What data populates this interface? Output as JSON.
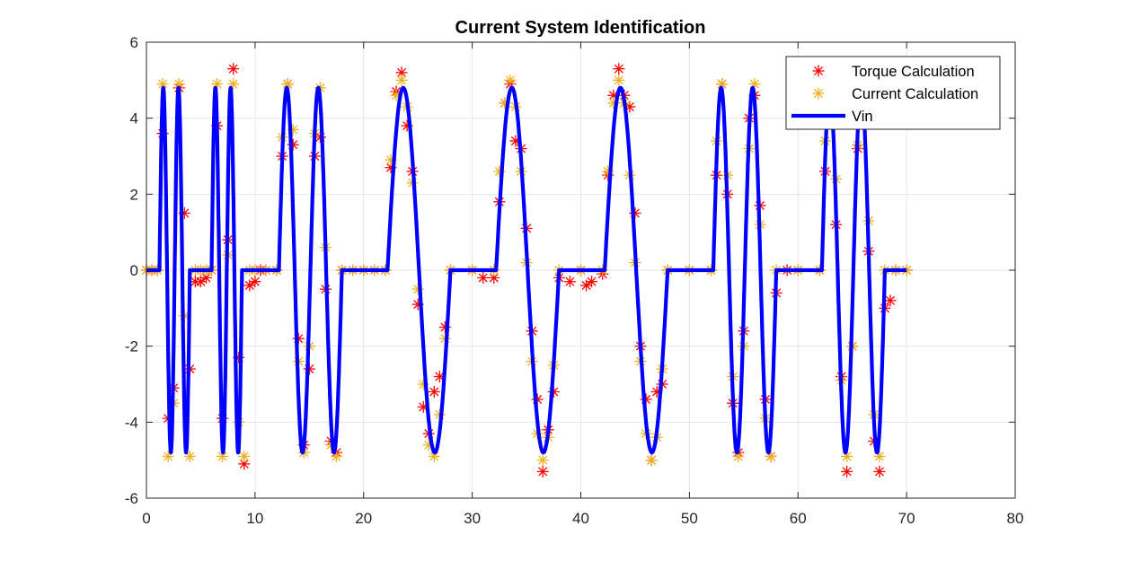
{
  "chart_data": {
    "type": "line",
    "title": "Current System Identification",
    "xlabel": "",
    "ylabel": "",
    "xlim": [
      0,
      80
    ],
    "ylim": [
      -6,
      6
    ],
    "xticks": [
      0,
      10,
      20,
      30,
      40,
      50,
      60,
      70,
      80
    ],
    "yticks": [
      -6,
      -4,
      -2,
      0,
      2,
      4,
      6
    ],
    "grid": true,
    "legend_position": "top-right",
    "series": [
      {
        "name": "Torque Calculation",
        "style": "red-asterisk",
        "color": "#ff0000",
        "points": [
          [
            0.0,
            0.0
          ],
          [
            0.5,
            0.0
          ],
          [
            1.0,
            0.0
          ],
          [
            1.5,
            3.6
          ],
          [
            2.0,
            -3.9
          ],
          [
            2.5,
            -3.1
          ],
          [
            3.0,
            4.8
          ],
          [
            3.5,
            1.5
          ],
          [
            4.0,
            -2.6
          ],
          [
            4.5,
            -0.3
          ],
          [
            5.0,
            -0.3
          ],
          [
            5.5,
            -0.2
          ],
          [
            6.0,
            0.0
          ],
          [
            6.5,
            3.8
          ],
          [
            7.0,
            -3.9
          ],
          [
            7.5,
            0.8
          ],
          [
            8.0,
            5.3
          ],
          [
            8.5,
            -2.3
          ],
          [
            9.0,
            -5.1
          ],
          [
            9.5,
            -0.4
          ],
          [
            10.0,
            -0.3
          ],
          [
            10.5,
            0.0
          ],
          [
            11.0,
            0.0
          ],
          [
            12.0,
            0.0
          ],
          [
            12.5,
            3.0
          ],
          [
            13.0,
            4.9
          ],
          [
            13.5,
            3.3
          ],
          [
            14.0,
            -1.8
          ],
          [
            14.5,
            -4.6
          ],
          [
            15.0,
            -2.6
          ],
          [
            15.5,
            3.0
          ],
          [
            16.0,
            3.5
          ],
          [
            16.5,
            -0.5
          ],
          [
            17.0,
            -4.5
          ],
          [
            17.5,
            -4.8
          ],
          [
            18.0,
            0.0
          ],
          [
            19.0,
            0.0
          ],
          [
            20.0,
            0.0
          ],
          [
            21.0,
            0.0
          ],
          [
            22.0,
            0.0
          ],
          [
            22.5,
            2.7
          ],
          [
            23.0,
            4.7
          ],
          [
            23.5,
            5.2
          ],
          [
            24.0,
            3.8
          ],
          [
            24.5,
            2.6
          ],
          [
            25.0,
            -0.9
          ],
          [
            25.5,
            -3.6
          ],
          [
            26.0,
            -4.3
          ],
          [
            26.5,
            -3.2
          ],
          [
            27.0,
            -2.8
          ],
          [
            27.5,
            -1.5
          ],
          [
            28.0,
            0.0
          ],
          [
            30.0,
            0.0
          ],
          [
            31.0,
            -0.2
          ],
          [
            32.0,
            -0.2
          ],
          [
            32.5,
            1.8
          ],
          [
            33.0,
            4.4
          ],
          [
            33.5,
            4.9
          ],
          [
            34.0,
            3.4
          ],
          [
            34.5,
            3.2
          ],
          [
            35.0,
            1.1
          ],
          [
            35.5,
            -1.6
          ],
          [
            36.0,
            -3.4
          ],
          [
            36.5,
            -5.3
          ],
          [
            37.0,
            -4.2
          ],
          [
            37.5,
            -3.2
          ],
          [
            38.0,
            -0.2
          ],
          [
            39.0,
            -0.3
          ],
          [
            40.0,
            0.0
          ],
          [
            40.5,
            -0.4
          ],
          [
            41.0,
            -0.3
          ],
          [
            42.0,
            -0.1
          ],
          [
            42.5,
            2.5
          ],
          [
            43.0,
            4.6
          ],
          [
            43.5,
            5.3
          ],
          [
            44.0,
            4.6
          ],
          [
            44.5,
            4.3
          ],
          [
            45.0,
            1.5
          ],
          [
            45.5,
            -2.0
          ],
          [
            46.0,
            -3.4
          ],
          [
            46.5,
            -5.0
          ],
          [
            47.0,
            -3.2
          ],
          [
            47.5,
            -3.0
          ],
          [
            48.0,
            0.0
          ],
          [
            50.0,
            0.0
          ],
          [
            52.0,
            0.0
          ],
          [
            52.5,
            2.5
          ],
          [
            53.0,
            4.9
          ],
          [
            53.5,
            2.0
          ],
          [
            54.0,
            -3.5
          ],
          [
            54.5,
            -4.8
          ],
          [
            55.0,
            -1.6
          ],
          [
            55.5,
            4.0
          ],
          [
            56.0,
            4.6
          ],
          [
            56.5,
            1.7
          ],
          [
            57.0,
            -3.4
          ],
          [
            57.5,
            -4.9
          ],
          [
            58.0,
            -0.6
          ],
          [
            59.0,
            0.0
          ],
          [
            60.0,
            0.0
          ],
          [
            62.0,
            0.0
          ],
          [
            62.5,
            2.6
          ],
          [
            63.0,
            4.4
          ],
          [
            63.5,
            1.2
          ],
          [
            64.0,
            -2.8
          ],
          [
            64.5,
            -5.3
          ],
          [
            65.0,
            -2.0
          ],
          [
            65.5,
            3.2
          ],
          [
            66.0,
            3.9
          ],
          [
            66.5,
            0.5
          ],
          [
            67.0,
            -4.5
          ],
          [
            67.5,
            -5.3
          ],
          [
            68.0,
            -1.0
          ],
          [
            68.5,
            -0.8
          ],
          [
            69.0,
            0.0
          ],
          [
            70.0,
            0.0
          ]
        ]
      },
      {
        "name": "Current Calculation",
        "style": "orange-asterisk",
        "color": "#edb120",
        "points": [
          [
            0.0,
            0.0
          ],
          [
            0.5,
            0.0
          ],
          [
            1.0,
            0.0
          ],
          [
            1.5,
            4.9
          ],
          [
            2.0,
            -4.9
          ],
          [
            2.5,
            -3.5
          ],
          [
            3.0,
            4.9
          ],
          [
            3.5,
            -1.2
          ],
          [
            4.0,
            -4.9
          ],
          [
            4.5,
            0.0
          ],
          [
            5.0,
            0.0
          ],
          [
            5.5,
            0.0
          ],
          [
            6.0,
            0.0
          ],
          [
            6.5,
            4.9
          ],
          [
            7.0,
            -4.9
          ],
          [
            7.5,
            0.4
          ],
          [
            8.0,
            4.9
          ],
          [
            8.5,
            -4.0
          ],
          [
            9.0,
            -4.9
          ],
          [
            9.5,
            0.0
          ],
          [
            10.0,
            0.0
          ],
          [
            11.0,
            0.0
          ],
          [
            12.0,
            0.0
          ],
          [
            12.5,
            3.5
          ],
          [
            13.0,
            4.9
          ],
          [
            13.5,
            3.7
          ],
          [
            14.0,
            -2.4
          ],
          [
            14.5,
            -4.8
          ],
          [
            15.0,
            -2.0
          ],
          [
            15.5,
            3.6
          ],
          [
            16.0,
            4.8
          ],
          [
            16.5,
            0.6
          ],
          [
            17.0,
            -4.6
          ],
          [
            17.5,
            -4.9
          ],
          [
            18.0,
            0.0
          ],
          [
            19.0,
            0.0
          ],
          [
            20.0,
            0.0
          ],
          [
            21.0,
            0.0
          ],
          [
            22.0,
            0.0
          ],
          [
            22.5,
            2.9
          ],
          [
            23.0,
            4.6
          ],
          [
            23.5,
            5.0
          ],
          [
            24.0,
            4.3
          ],
          [
            24.5,
            2.3
          ],
          [
            25.0,
            -0.5
          ],
          [
            25.5,
            -3.0
          ],
          [
            26.0,
            -4.6
          ],
          [
            26.5,
            -4.9
          ],
          [
            27.0,
            -3.8
          ],
          [
            27.5,
            -1.8
          ],
          [
            28.0,
            0.0
          ],
          [
            30.0,
            0.0
          ],
          [
            32.0,
            0.0
          ],
          [
            32.5,
            2.6
          ],
          [
            33.0,
            4.4
          ],
          [
            33.5,
            5.0
          ],
          [
            34.0,
            4.3
          ],
          [
            34.5,
            2.6
          ],
          [
            35.0,
            0.2
          ],
          [
            35.5,
            -2.4
          ],
          [
            36.0,
            -4.3
          ],
          [
            36.5,
            -5.0
          ],
          [
            37.0,
            -4.4
          ],
          [
            37.5,
            -2.5
          ],
          [
            38.0,
            0.0
          ],
          [
            40.0,
            0.0
          ],
          [
            42.0,
            0.0
          ],
          [
            42.5,
            2.6
          ],
          [
            43.0,
            4.4
          ],
          [
            43.5,
            5.0
          ],
          [
            44.0,
            4.4
          ],
          [
            44.5,
            2.5
          ],
          [
            45.0,
            0.2
          ],
          [
            45.5,
            -2.4
          ],
          [
            46.0,
            -4.3
          ],
          [
            46.5,
            -5.0
          ],
          [
            47.0,
            -4.4
          ],
          [
            47.5,
            -2.6
          ],
          [
            48.0,
            0.0
          ],
          [
            50.0,
            0.0
          ],
          [
            52.0,
            0.0
          ],
          [
            52.5,
            3.4
          ],
          [
            53.0,
            4.9
          ],
          [
            53.5,
            2.5
          ],
          [
            54.0,
            -2.8
          ],
          [
            54.5,
            -4.9
          ],
          [
            55.0,
            -2.0
          ],
          [
            55.5,
            3.2
          ],
          [
            56.0,
            4.9
          ],
          [
            56.5,
            1.2
          ],
          [
            57.0,
            -3.9
          ],
          [
            57.5,
            -4.9
          ],
          [
            58.0,
            0.0
          ],
          [
            60.0,
            0.0
          ],
          [
            62.0,
            0.0
          ],
          [
            62.5,
            3.4
          ],
          [
            63.0,
            4.9
          ],
          [
            63.5,
            2.4
          ],
          [
            64.0,
            -2.9
          ],
          [
            64.5,
            -4.9
          ],
          [
            65.0,
            -2.0
          ],
          [
            65.5,
            3.3
          ],
          [
            66.0,
            4.9
          ],
          [
            66.5,
            1.3
          ],
          [
            67.0,
            -3.8
          ],
          [
            67.5,
            -4.9
          ],
          [
            68.0,
            0.0
          ],
          [
            69.0,
            0.0
          ],
          [
            70.0,
            0.0
          ]
        ]
      },
      {
        "name": "Vin",
        "style": "blue-line",
        "color": "#0000ff",
        "segments": [
          {
            "type": "zero",
            "from": 0,
            "to": 1.2
          },
          {
            "type": "sine",
            "from": 1.2,
            "to": 4.0,
            "cycles": 2,
            "amplitude": 4.8
          },
          {
            "type": "zero",
            "from": 4.0,
            "to": 6.0
          },
          {
            "type": "sine",
            "from": 6.0,
            "to": 8.8,
            "cycles": 2,
            "amplitude": 4.8
          },
          {
            "type": "zero",
            "from": 8.8,
            "to": 12.2
          },
          {
            "type": "sine",
            "from": 12.2,
            "to": 18.0,
            "cycles": 2,
            "amplitude": 4.8
          },
          {
            "type": "zero",
            "from": 18.0,
            "to": 22.2
          },
          {
            "type": "sine",
            "from": 22.2,
            "to": 28.0,
            "cycles": 1,
            "amplitude": 4.8
          },
          {
            "type": "zero",
            "from": 28.0,
            "to": 32.2
          },
          {
            "type": "sine",
            "from": 32.2,
            "to": 38.0,
            "cycles": 1,
            "amplitude": 4.8
          },
          {
            "type": "zero",
            "from": 38.0,
            "to": 42.2
          },
          {
            "type": "sine",
            "from": 42.2,
            "to": 48.0,
            "cycles": 1,
            "amplitude": 4.8
          },
          {
            "type": "zero",
            "from": 48.0,
            "to": 52.2
          },
          {
            "type": "sine",
            "from": 52.2,
            "to": 58.0,
            "cycles": 2,
            "amplitude": 4.8
          },
          {
            "type": "zero",
            "from": 58.0,
            "to": 62.2
          },
          {
            "type": "sine",
            "from": 62.2,
            "to": 68.0,
            "cycles": 2,
            "amplitude": 4.8
          },
          {
            "type": "zero",
            "from": 68.0,
            "to": 70.0
          }
        ]
      }
    ]
  }
}
